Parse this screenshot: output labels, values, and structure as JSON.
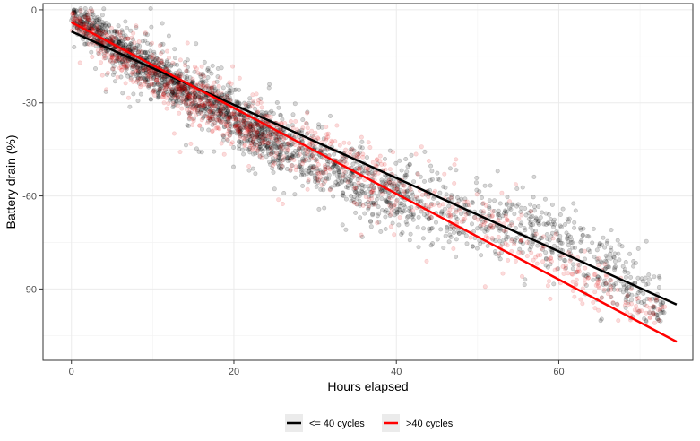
{
  "chart_data": {
    "type": "scatter",
    "xlabel": "Hours elapsed",
    "ylabel": "Battery drain (%)",
    "xlim": [
      -3.5,
      76.5
    ],
    "ylim": [
      -113,
      2
    ],
    "x_ticks": [
      0,
      20,
      40,
      60
    ],
    "y_ticks": [
      0,
      -30,
      -60,
      -90
    ],
    "x_tick_labels": [
      "0",
      "20",
      "40",
      "60"
    ],
    "y_tick_labels": [
      "0",
      "-30",
      "-60",
      "-90"
    ],
    "grid": true,
    "legend_position": "bottom",
    "series": [
      {
        "name": "<= 40 cycles",
        "color": "#000000",
        "fit_line": {
          "x": [
            0,
            74.5
          ],
          "y": [
            -7,
            -95
          ]
        },
        "cloud": [
          [
            0,
            -1,
            2
          ],
          [
            2,
            -5,
            3
          ],
          [
            5,
            -11,
            3
          ],
          [
            8,
            -16,
            3.5
          ],
          [
            11,
            -21,
            3.5
          ],
          [
            14,
            -26,
            3.5
          ],
          [
            18,
            -31,
            4
          ],
          [
            22,
            -38,
            4
          ],
          [
            26,
            -44,
            4.5
          ],
          [
            30,
            -48,
            5
          ],
          [
            34,
            -54,
            5
          ],
          [
            38,
            -59,
            5.5
          ],
          [
            42,
            -62,
            6
          ],
          [
            46,
            -65,
            6
          ],
          [
            50,
            -67,
            6
          ],
          [
            54,
            -69,
            6
          ],
          [
            58,
            -72,
            6
          ],
          [
            62,
            -76,
            6
          ],
          [
            66,
            -82,
            6
          ],
          [
            70,
            -92,
            6
          ],
          [
            73,
            -97,
            4
          ]
        ]
      },
      {
        "name": ">40 cycles",
        "color": "#ff0000",
        "fit_line": {
          "x": [
            0,
            74.5
          ],
          "y": [
            -4,
            -107
          ]
        },
        "cloud": [
          [
            0,
            -2,
            2
          ],
          [
            2,
            -6,
            3
          ],
          [
            5,
            -12,
            3.5
          ],
          [
            8,
            -17,
            3.5
          ],
          [
            11,
            -22,
            4
          ],
          [
            14,
            -27,
            4
          ],
          [
            18,
            -32,
            4.5
          ],
          [
            22,
            -38,
            5
          ],
          [
            26,
            -42,
            5
          ],
          [
            30,
            -46,
            5
          ],
          [
            35,
            -52,
            5
          ],
          [
            40,
            -58,
            5
          ],
          [
            45,
            -62,
            5
          ],
          [
            52,
            -70,
            5
          ],
          [
            62,
            -85,
            5
          ],
          [
            70,
            -97,
            3
          ],
          [
            73,
            -98,
            2
          ]
        ]
      }
    ],
    "legend": {
      "entries": [
        {
          "label": "<= 40 cycles",
          "color": "#000000"
        },
        {
          "label": ">40 cycles",
          "color": "#ff0000"
        }
      ]
    }
  }
}
